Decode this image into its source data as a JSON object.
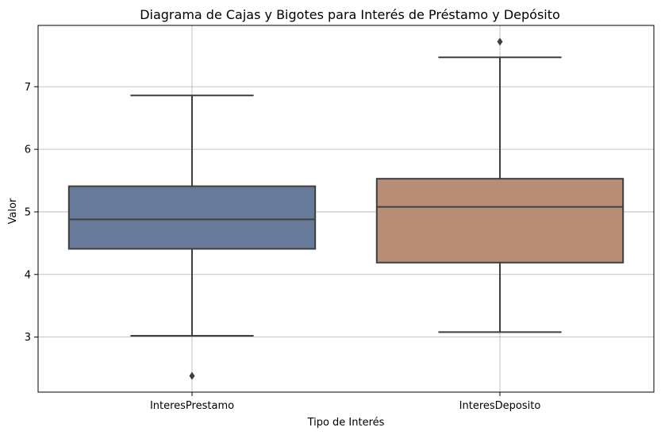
{
  "chart_data": {
    "type": "box",
    "title": "Diagrama de Cajas y Bigotes para Interés de Préstamo y Depósito",
    "xlabel": "Tipo de Interés",
    "ylabel": "Valor",
    "ylim": [
      2.12,
      7.98
    ],
    "yticks": [
      3,
      4,
      5,
      6,
      7
    ],
    "grid": true,
    "categories": [
      "InteresPrestamo",
      "InteresDeposito"
    ],
    "boxes": [
      {
        "category": "InteresPrestamo",
        "whisker_low": 3.02,
        "q1": 4.41,
        "median": 4.88,
        "q3": 5.41,
        "whisker_high": 6.86,
        "outliers": [
          2.38
        ],
        "color": "#687a99"
      },
      {
        "category": "InteresDeposito",
        "whisker_low": 3.08,
        "q1": 4.19,
        "median": 5.08,
        "q3": 5.53,
        "whisker_high": 7.47,
        "outliers": [
          7.72
        ],
        "color": "#b78d76"
      }
    ]
  }
}
